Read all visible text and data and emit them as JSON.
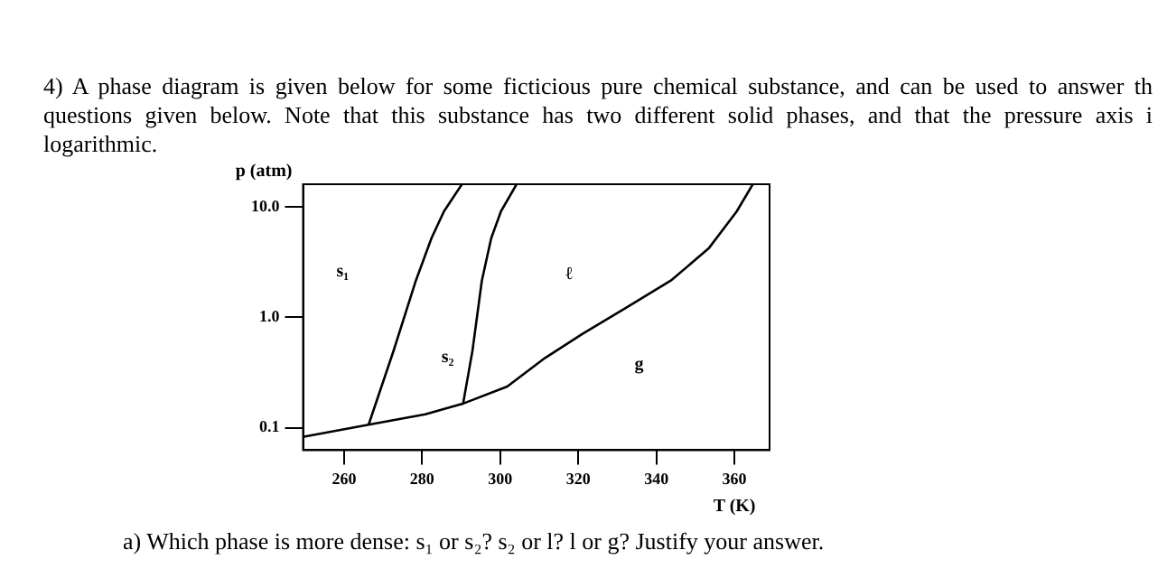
{
  "chart_data": {
    "type": "line",
    "title": "4) A phase diagram is given below for some ficticious pure chemical substance, and can be used to answer th questions given below.  Note that this substance has two different solid phases, and that the pressure axis i logarithmic.",
    "xlabel": "T (K)",
    "ylabel": "p (atm)",
    "series": [
      {
        "color": "#000000",
        "x": [
          249.5,
          266.3,
          280.8,
          290.5,
          301.8,
          311.5,
          321.1,
          332.4,
          343.7,
          353.4,
          360.6,
          364.7
        ],
        "values": [
          0.083,
          0.107,
          0.133,
          0.166,
          0.237,
          0.43,
          0.71,
          1.23,
          2.15,
          4.2,
          9.1,
          16
        ]
      },
      {
        "color": "#000000",
        "x": [
          266.3,
          272.7,
          278.4,
          282.4,
          285.6,
          290.2
        ],
        "values": [
          0.107,
          0.5,
          2.15,
          5.2,
          9.1,
          16
        ]
      },
      {
        "color": "#000000",
        "x": [
          290.5,
          292.9,
          295.3,
          297.7,
          300.2,
          304.2
        ],
        "values": [
          0.166,
          0.5,
          2.15,
          5.2,
          9.1,
          16
        ]
      }
    ],
    "xlim": [
      249.5,
      369
    ],
    "xticks": [
      260,
      280,
      300,
      320,
      340,
      360
    ],
    "ylim": [
      0.063,
      16
    ],
    "yticks": [
      {
        "value": 0.1,
        "label": "0.1"
      },
      {
        "value": 1,
        "label": "1.0"
      },
      {
        "value": 10,
        "label": "10.0"
      }
    ],
    "log": "y",
    "grid": false,
    "legend": false,
    "marker": "none",
    "line_style": "solid",
    "annotations": [
      "s₁",
      "s₂",
      "ℓ",
      "g",
      "a) Which phase is more dense: s₁ or s₂?  s₂ or l?  l or g?  Justify your answer."
    ]
  }
}
